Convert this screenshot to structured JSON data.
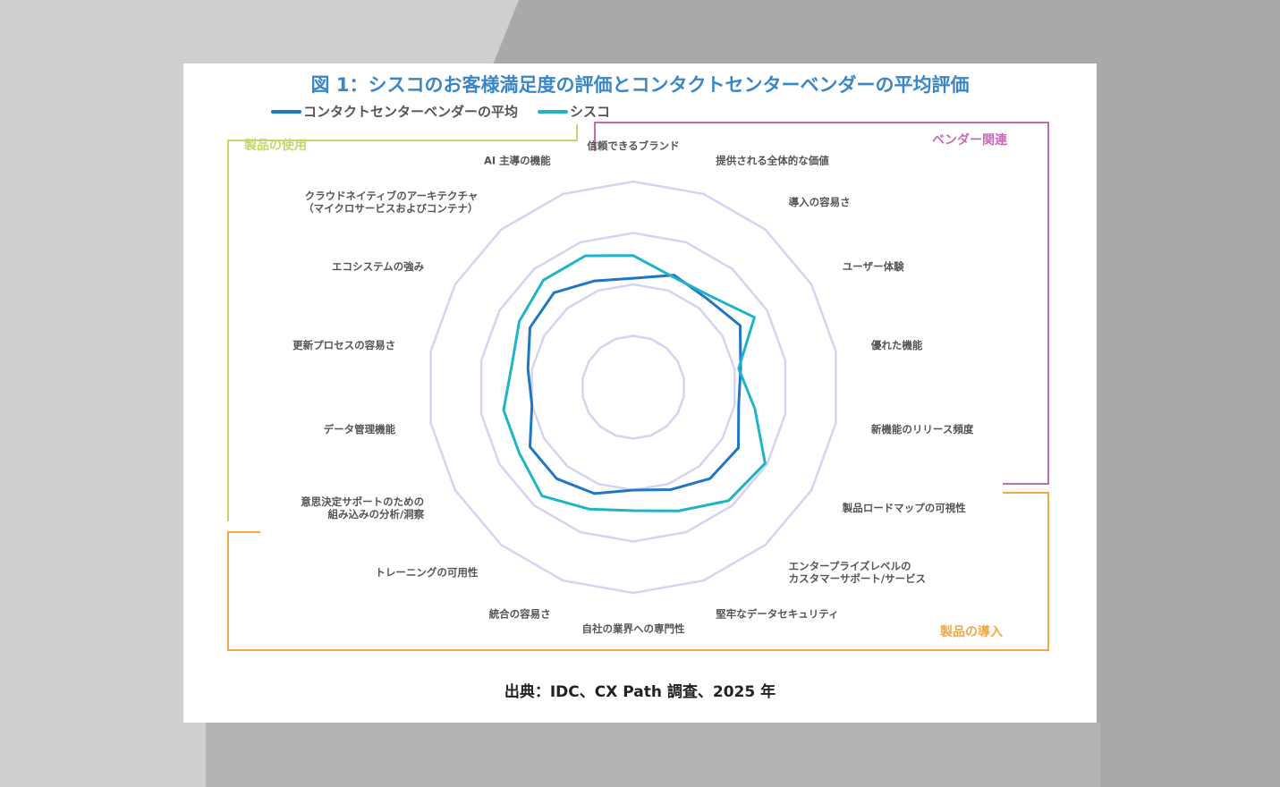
{
  "chart_data": {
    "type": "radar",
    "title": "図 1：シスコのお客様満足度の評価とコンタクトセンターベンダーの平均評価",
    "source": "出典：IDC、CX Path 調査、2025 年",
    "axes": [
      "信頼できるブランド",
      "提供される全体的な価値",
      "導入の容易さ",
      "ユーザー体験",
      "優れた機能",
      "新機能のリリース頻度",
      "製品ロードマップの可視性",
      "エンタープライズレベルの\nカスタマーサポート/サービス",
      "堅牢なデータセキュリティ",
      "自社の業界への専門性",
      "統合の容易さ",
      "トレーニングの可用性",
      "意思決定サポートのための\n組み込みの分析/洞察",
      "データ管理機能",
      "更新プロセスの容易さ",
      "エコシステムの強み",
      "クラウドネイティブのアーキテクチャ\n（マイクロサービスおよびコンテナ）",
      "AI 主導の機能"
    ],
    "series": [
      {
        "name": "コンタクトセンターベンダーの平均",
        "color": "#1f77c4",
        "values": [
          0.53,
          0.58,
          0.56,
          0.6,
          0.53,
          0.52,
          0.59,
          0.58,
          0.53,
          0.5,
          0.55,
          0.58,
          0.58,
          0.5,
          0.52,
          0.58,
          0.6,
          0.55
        ]
      },
      {
        "name": "シスコ",
        "color": "#1fb3c8",
        "values": [
          0.64,
          0.57,
          0.58,
          0.68,
          0.52,
          0.6,
          0.74,
          0.72,
          0.64,
          0.6,
          0.63,
          0.69,
          0.64,
          0.64,
          0.6,
          0.64,
          0.68,
          0.68
        ]
      }
    ],
    "rings": [
      0.25,
      0.5,
      0.75,
      1.0
    ],
    "groups": [
      {
        "label": "製品の使用",
        "color": "#c2d86a"
      },
      {
        "label": "ベンダー関連",
        "color": "#c46bb8"
      },
      {
        "label": "製品の導入",
        "color": "#f0a94a"
      }
    ],
    "legend_position": "top-left"
  }
}
